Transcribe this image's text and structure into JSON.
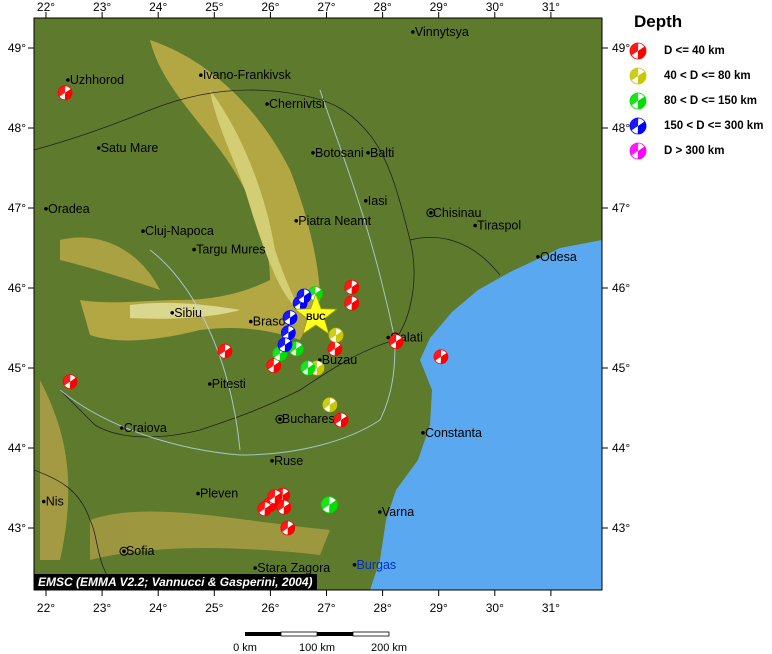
{
  "legend": {
    "title": "Depth",
    "items": [
      {
        "label": "D <= 40 km",
        "color": "#ff0000"
      },
      {
        "label": "40 < D <= 80 km",
        "color": "#c8c800"
      },
      {
        "label": "80 < D <= 150 km",
        "color": "#00e000"
      },
      {
        "label": "150 < D <= 300 km",
        "color": "#0000ff"
      },
      {
        "label": "D > 300 km",
        "color": "#ff00ff"
      }
    ]
  },
  "credit": "EMSC (EMMA V2.2; Vannucci & Gasperini, 2004)",
  "scale_bar": {
    "labels": [
      "0 km",
      "100 km",
      "200 km"
    ]
  },
  "axes": {
    "lon_ticks": [
      22,
      23,
      24,
      25,
      26,
      27,
      28,
      29,
      30,
      31
    ],
    "lat_ticks": [
      43,
      44,
      45,
      46,
      47,
      48,
      49
    ],
    "degree_symbol": "°"
  },
  "colors": {
    "land": "#5e7a2c",
    "mountain": "#c8b448",
    "sea": "#5aa8f0"
  },
  "cities": [
    {
      "name": "Vinnytsya",
      "lon": 28.54,
      "lat": 49.2
    },
    {
      "name": "Uzhhorod",
      "lon": 22.39,
      "lat": 48.6
    },
    {
      "name": "Ivano-Frankivsk",
      "lon": 24.76,
      "lat": 48.66
    },
    {
      "name": "Chernivtsi",
      "lon": 25.94,
      "lat": 48.3
    },
    {
      "name": "Satu Mare",
      "lon": 22.94,
      "lat": 47.75
    },
    {
      "name": "Botosani",
      "lon": 26.76,
      "lat": 47.69
    },
    {
      "name": "Balti",
      "lon": 27.74,
      "lat": 47.69
    },
    {
      "name": "Oradea",
      "lon": 22.0,
      "lat": 46.99
    },
    {
      "name": "Iasi",
      "lon": 27.7,
      "lat": 47.09
    },
    {
      "name": "Chisinau",
      "lon": 28.86,
      "lat": 46.94,
      "capital": true
    },
    {
      "name": "Tiraspol",
      "lon": 29.65,
      "lat": 46.78
    },
    {
      "name": "Cluj-Napoca",
      "lon": 23.73,
      "lat": 46.71
    },
    {
      "name": "Piatra Neamt",
      "lon": 26.46,
      "lat": 46.84
    },
    {
      "name": "Targu Mures",
      "lon": 24.64,
      "lat": 46.48
    },
    {
      "name": "Odesa",
      "lon": 30.77,
      "lat": 46.39
    },
    {
      "name": "Sibiu",
      "lon": 24.25,
      "lat": 45.69
    },
    {
      "name": "Brasov",
      "lon": 25.65,
      "lat": 45.58
    },
    {
      "name": "Galati",
      "lon": 28.1,
      "lat": 45.38
    },
    {
      "name": "Buzau",
      "lon": 26.88,
      "lat": 45.1
    },
    {
      "name": "Pitesti",
      "lon": 24.92,
      "lat": 44.8
    },
    {
      "name": "Bucharest",
      "lon": 26.17,
      "lat": 44.36,
      "capital": true
    },
    {
      "name": "Craiova",
      "lon": 23.35,
      "lat": 44.25
    },
    {
      "name": "Constanta",
      "lon": 28.72,
      "lat": 44.19
    },
    {
      "name": "Ruse",
      "lon": 26.03,
      "lat": 43.84
    },
    {
      "name": "Pleven",
      "lon": 24.71,
      "lat": 43.43
    },
    {
      "name": "Nis",
      "lon": 21.96,
      "lat": 43.33
    },
    {
      "name": "Varna",
      "lon": 27.95,
      "lat": 43.2
    },
    {
      "name": "Sofia",
      "lon": 23.39,
      "lat": 42.71,
      "capital": true
    },
    {
      "name": "Stara Zagora",
      "lon": 25.73,
      "lat": 42.5
    },
    {
      "name": "Burgas",
      "lon": 27.5,
      "lat": 42.54
    }
  ],
  "station": {
    "label": "BUC",
    "lon": 26.81,
    "lat": 45.65
  },
  "events": [
    {
      "lon": 22.34,
      "lat": 48.44,
      "depth_class": 0
    },
    {
      "lon": 22.43,
      "lat": 44.83,
      "depth_class": 0
    },
    {
      "lon": 25.19,
      "lat": 45.21,
      "depth_class": 0
    },
    {
      "lon": 26.06,
      "lat": 45.03,
      "depth_class": 0
    },
    {
      "lon": 27.45,
      "lat": 46.01,
      "depth_class": 0
    },
    {
      "lon": 27.45,
      "lat": 45.81,
      "depth_class": 0
    },
    {
      "lon": 27.15,
      "lat": 45.24,
      "depth_class": 0
    },
    {
      "lon": 28.24,
      "lat": 45.33,
      "depth_class": 0
    },
    {
      "lon": 29.04,
      "lat": 45.14,
      "depth_class": 0
    },
    {
      "lon": 27.26,
      "lat": 44.35,
      "depth_class": 0
    },
    {
      "lon": 27.06,
      "lat": 44.54,
      "depth_class": 1
    },
    {
      "lon": 27.17,
      "lat": 45.41,
      "depth_class": 1
    },
    {
      "lon": 26.83,
      "lat": 45.0,
      "depth_class": 1
    },
    {
      "lon": 26.67,
      "lat": 45.0,
      "depth_class": 2
    },
    {
      "lon": 26.17,
      "lat": 45.18,
      "depth_class": 2
    },
    {
      "lon": 26.46,
      "lat": 45.24,
      "depth_class": 2
    },
    {
      "lon": 27.05,
      "lat": 43.29,
      "depth_class": 2
    },
    {
      "lon": 26.8,
      "lat": 45.93,
      "depth_class": 2
    },
    {
      "lon": 26.53,
      "lat": 45.81,
      "depth_class": 3
    },
    {
      "lon": 26.35,
      "lat": 45.63,
      "depth_class": 3
    },
    {
      "lon": 26.32,
      "lat": 45.44,
      "depth_class": 3
    },
    {
      "lon": 26.26,
      "lat": 45.29,
      "depth_class": 3
    },
    {
      "lon": 26.6,
      "lat": 45.9,
      "depth_class": 3
    },
    {
      "lon": 25.99,
      "lat": 43.29,
      "depth_class": 0
    },
    {
      "lon": 26.22,
      "lat": 43.41,
      "depth_class": 0
    },
    {
      "lon": 26.08,
      "lat": 43.39,
      "depth_class": 0
    },
    {
      "lon": 26.24,
      "lat": 43.26,
      "depth_class": 0
    },
    {
      "lon": 26.31,
      "lat": 43.0,
      "depth_class": 0
    },
    {
      "lon": 25.9,
      "lat": 43.24,
      "depth_class": 0
    }
  ]
}
